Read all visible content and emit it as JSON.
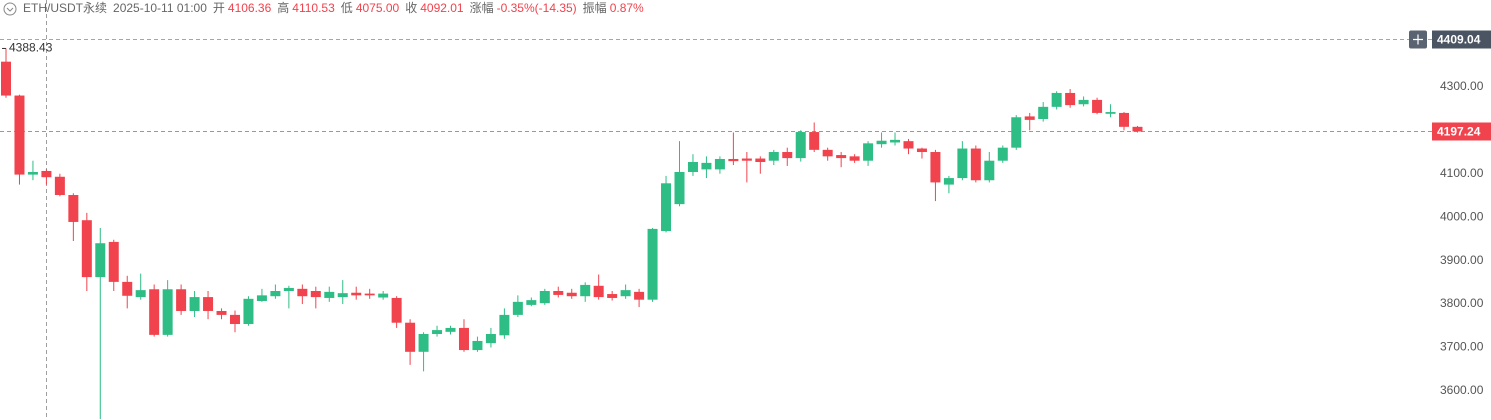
{
  "chart_data": {
    "type": "candlestick",
    "symbol": "ETH/USDT永续",
    "time": "2025-10-11 01:00",
    "header": [
      {
        "label": "开",
        "value": "4106.36"
      },
      {
        "label": "高",
        "value": "4110.53"
      },
      {
        "label": "低",
        "value": "4075.00"
      },
      {
        "label": "收",
        "value": "4092.01"
      },
      {
        "label": "涨幅",
        "value": "-0.35%(-14.35)"
      },
      {
        "label": "振幅",
        "value": "0.87%"
      }
    ],
    "open": [
      4358,
      4280,
      4098,
      4106.36,
      4093,
      4051,
      3993,
      3862,
      3943,
      3851,
      3816,
      3834,
      3729,
      3834,
      3784,
      3816,
      3784,
      3775,
      3754,
      3807,
      3818,
      3830,
      3835,
      3830,
      3814,
      3816,
      3826,
      3824,
      3815,
      3814,
      3757,
      3690,
      3731,
      3736,
      3745,
      3694,
      3710,
      3728,
      3775,
      3798,
      3802,
      3830,
      3826,
      3818,
      3842,
      3823,
      3818,
      3828,
      3810,
      3968,
      4030,
      4104,
      4110,
      4110,
      4134,
      4135,
      4135,
      4130,
      4150,
      4136,
      4196,
      4155,
      4143,
      4140,
      4130,
      4168,
      4172,
      4175,
      4158,
      4150,
      4075,
      4090,
      4158,
      4085,
      4130,
      4160,
      4232,
      4226,
      4254,
      4286,
      4260,
      4270,
      4238,
      4240,
      4208
    ],
    "high": [
      4388.43,
      4282,
      4130,
      4110.53,
      4100,
      4055,
      4010,
      3975,
      3948,
      3865,
      3870,
      3845,
      3855,
      3845,
      3830,
      3830,
      3790,
      3785,
      3818,
      3835,
      3845,
      3842,
      3845,
      3840,
      3840,
      3855,
      3840,
      3835,
      3830,
      3818,
      3765,
      3735,
      3750,
      3750,
      3765,
      3725,
      3745,
      3790,
      3820,
      3815,
      3835,
      3840,
      3835,
      3850,
      3868,
      3830,
      3845,
      3835,
      3975,
      4095,
      4175,
      4145,
      4140,
      4140,
      4195,
      4150,
      4140,
      4155,
      4160,
      4200,
      4218,
      4160,
      4150,
      4145,
      4175,
      4195,
      4195,
      4180,
      4160,
      4155,
      4095,
      4175,
      4165,
      4150,
      4165,
      4235,
      4240,
      4265,
      4290,
      4295,
      4278,
      4275,
      4260,
      4242,
      4210
    ],
    "low": [
      4275,
      4075,
      4085,
      4075,
      4048,
      3945,
      3830,
      3535,
      3830,
      3790,
      3810,
      3725,
      3725,
      3775,
      3770,
      3765,
      3765,
      3735,
      3750,
      3805,
      3812,
      3790,
      3800,
      3790,
      3805,
      3800,
      3810,
      3812,
      3810,
      3745,
      3660,
      3645,
      3725,
      3730,
      3690,
      3690,
      3700,
      3720,
      3770,
      3795,
      3798,
      3815,
      3812,
      3805,
      3810,
      3808,
      3812,
      3793,
      3805,
      3965,
      4025,
      4095,
      4090,
      4100,
      4120,
      4080,
      4100,
      4120,
      4118,
      4128,
      4150,
      4130,
      4115,
      4125,
      4118,
      4160,
      4165,
      4145,
      4135,
      4037,
      4055,
      4085,
      4080,
      4080,
      4125,
      4155,
      4200,
      4220,
      4248,
      4252,
      4255,
      4237,
      4230,
      4200,
      4195
    ],
    "close": [
      4280,
      4098,
      4104,
      4092.01,
      4051,
      3989,
      3862,
      3940,
      3851,
      3819,
      3832,
      3729,
      3834,
      3784,
      3816,
      3784,
      3775,
      3754,
      3812,
      3820,
      3830,
      3837,
      3818,
      3816,
      3828,
      3825,
      3820,
      3820,
      3824,
      3757,
      3690,
      3731,
      3740,
      3745,
      3694,
      3715,
      3731,
      3775,
      3805,
      3809,
      3830,
      3821,
      3818,
      3844,
      3816,
      3814,
      3832,
      3810,
      3973,
      4078,
      4104,
      4127,
      4125,
      4134,
      4129,
      4130,
      4127,
      4150,
      4136,
      4196,
      4155,
      4140,
      4136,
      4130,
      4170,
      4176,
      4178,
      4158,
      4150,
      4080,
      4090,
      4158,
      4085,
      4130,
      4160,
      4230,
      4224,
      4254,
      4286,
      4258,
      4270,
      4240,
      4242,
      4208,
      4197.24
    ],
    "up_color": "#2ebd85",
    "down_color": "#f0434d",
    "ylim": [
      3533,
      4500
    ],
    "yticks": [
      {
        "value": 3600,
        "label": "3600.00"
      },
      {
        "value": 3700,
        "label": "3700.00"
      },
      {
        "value": 3800,
        "label": "3800.00"
      },
      {
        "value": 3900,
        "label": "3900.00"
      },
      {
        "value": 4000,
        "label": "4000.00"
      },
      {
        "value": 4100,
        "label": "4100.00"
      },
      {
        "value": 4200,
        "label": "4200.00"
      },
      {
        "value": 4300,
        "label": "4300.00"
      }
    ],
    "crosshair_price": 4409.04,
    "crosshair_index": 3,
    "grid": false
  }
}
